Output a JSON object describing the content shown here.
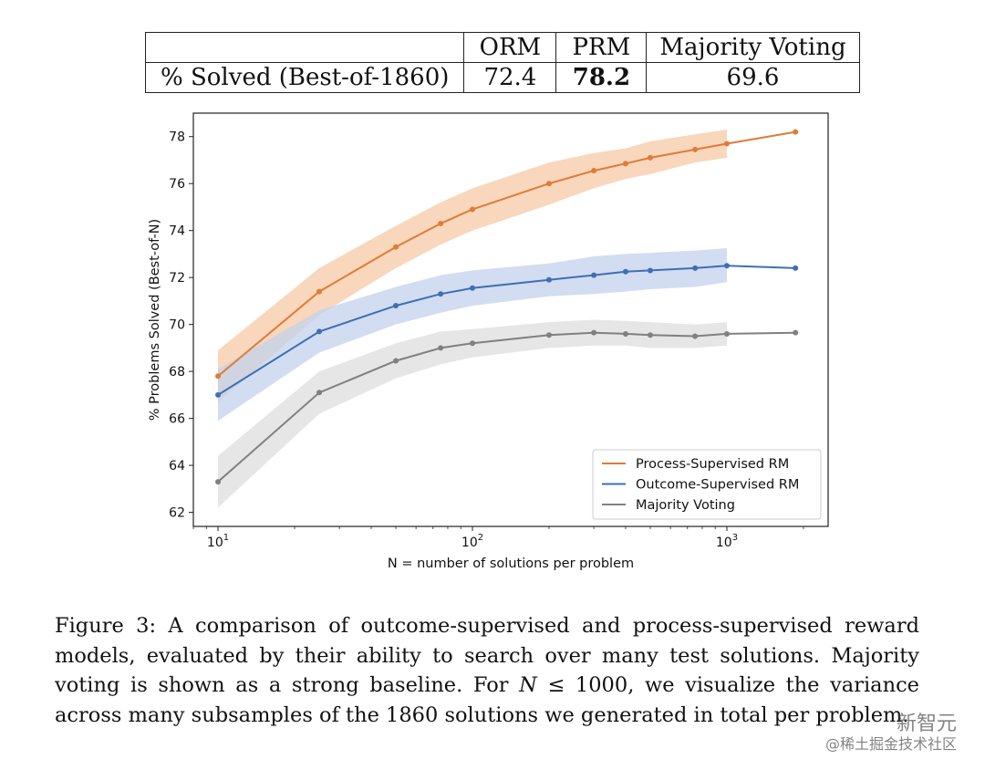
{
  "table": {
    "headers": [
      "",
      "ORM",
      "PRM",
      "Majority Voting"
    ],
    "row_label": "% Solved (Best-of-1860)",
    "values": [
      "72.4",
      "78.2",
      "69.6"
    ],
    "bold_index": 1
  },
  "chart_data": {
    "type": "line",
    "xscale": "log",
    "xlabel": "N = number of solutions per problem",
    "ylabel": "% Problems Solved (Best-of-N)",
    "xlim": [
      8,
      2500
    ],
    "ylim": [
      61.4,
      79.0
    ],
    "yticks": [
      62,
      64,
      66,
      68,
      70,
      72,
      74,
      76,
      78
    ],
    "xticks": [
      10,
      100,
      1000
    ],
    "xtick_labels": [
      [
        "10",
        "1"
      ],
      [
        "10",
        "2"
      ],
      [
        "10",
        "3"
      ]
    ],
    "legend_position": "lower-right",
    "grid": false,
    "series": [
      {
        "name": "Process-Supervised RM",
        "color": "#e07b39",
        "band_color": "#f5c9a5",
        "x": [
          10,
          25,
          50,
          75,
          100,
          200,
          300,
          400,
          500,
          750,
          1000,
          1860
        ],
        "y": [
          67.8,
          71.4,
          73.3,
          74.3,
          74.9,
          76.0,
          76.55,
          76.85,
          77.1,
          77.45,
          77.7,
          78.2
        ],
        "band_low": [
          66.7,
          70.4,
          72.4,
          73.4,
          74.0,
          75.1,
          75.8,
          76.2,
          76.4,
          76.9,
          77.1
        ],
        "band_high": [
          68.9,
          72.4,
          74.2,
          75.2,
          75.8,
          76.9,
          77.3,
          77.5,
          77.8,
          78.1,
          78.3
        ]
      },
      {
        "name": "Outcome-Supervised RM",
        "color": "#3e6fb3",
        "band_color": "#c3d2ec",
        "x": [
          10,
          25,
          50,
          75,
          100,
          200,
          300,
          400,
          500,
          750,
          1000,
          1860
        ],
        "y": [
          67.0,
          69.7,
          70.8,
          71.3,
          71.55,
          71.9,
          72.1,
          72.25,
          72.3,
          72.4,
          72.5,
          72.4
        ],
        "band_low": [
          65.9,
          68.8,
          70.0,
          70.5,
          70.8,
          71.2,
          71.3,
          71.4,
          71.5,
          71.6,
          71.8
        ],
        "band_high": [
          68.1,
          70.6,
          71.6,
          72.1,
          72.3,
          72.6,
          72.9,
          73.0,
          73.05,
          73.15,
          73.25
        ]
      },
      {
        "name": "Majority Voting",
        "color": "#808080",
        "band_color": "#dedede",
        "x": [
          10,
          25,
          50,
          75,
          100,
          200,
          300,
          400,
          500,
          750,
          1000,
          1860
        ],
        "y": [
          63.3,
          67.1,
          68.45,
          69.0,
          69.2,
          69.55,
          69.65,
          69.6,
          69.55,
          69.5,
          69.6,
          69.65
        ],
        "band_low": [
          62.2,
          66.2,
          67.7,
          68.3,
          68.6,
          69.0,
          69.1,
          69.1,
          69.0,
          69.0,
          69.1
        ],
        "band_high": [
          64.4,
          68.0,
          69.2,
          69.7,
          69.8,
          70.1,
          70.2,
          70.15,
          70.1,
          70.0,
          70.1
        ]
      }
    ]
  },
  "caption": {
    "label": "Figure 3:",
    "text_1": " A comparison of outcome-supervised and process-supervised reward models, evaluated by their ability to search over many test solutions. Majority voting is shown as a strong baseline. For ",
    "math_var": "N",
    "math_op": " ≤ 1000",
    "text_2": ", we visualize the variance across many subsamples of the 1860 solutions we generated in total per problem."
  },
  "watermark": {
    "line1": "新智元",
    "line2": "@稀土掘金技术社区"
  }
}
